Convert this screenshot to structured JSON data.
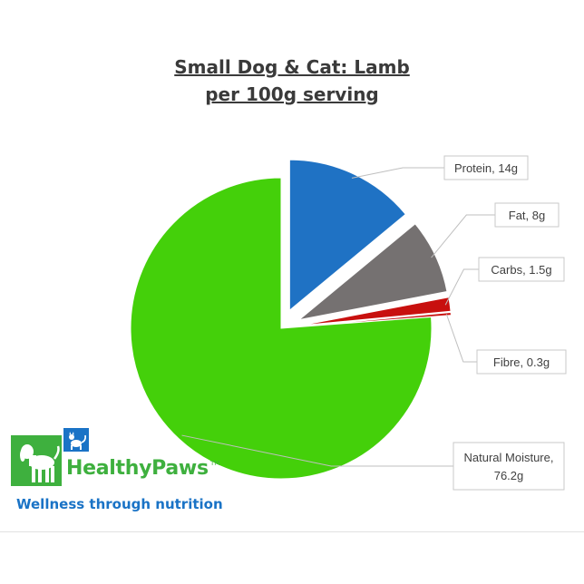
{
  "chart_data": {
    "type": "pie",
    "title": "Small Dog & Cat: Lamb",
    "subtitle": "per 100g serving",
    "exploded": true,
    "slices": [
      {
        "label": "Protein",
        "value": 14,
        "unit": "g",
        "color": "#1f72c4",
        "label_text": "Protein, 14g"
      },
      {
        "label": "Fat",
        "value": 8,
        "unit": "g",
        "color": "#757171",
        "label_text": "Fat, 8g"
      },
      {
        "label": "Carbs",
        "value": 1.5,
        "unit": "g",
        "color": "#c8100e",
        "label_text": "Carbs, 1.5g"
      },
      {
        "label": "Fibre",
        "value": 0.3,
        "unit": "g",
        "color": "#c8100e",
        "label_text": "Fibre, 0.3g"
      },
      {
        "label": "Natural Moisture",
        "value": 76.2,
        "unit": "g",
        "color": "#44d00a",
        "label_text": [
          "Natural Moisture,",
          "76.2g"
        ]
      }
    ]
  },
  "brand": {
    "name": "HealthyPaws",
    "tm": "TM",
    "tagline": "Wellness through nutrition",
    "logo_icons": [
      "dog-icon",
      "cat-icon"
    ],
    "colors": {
      "green": "#3eb03e",
      "blue": "#1a73c6"
    }
  }
}
